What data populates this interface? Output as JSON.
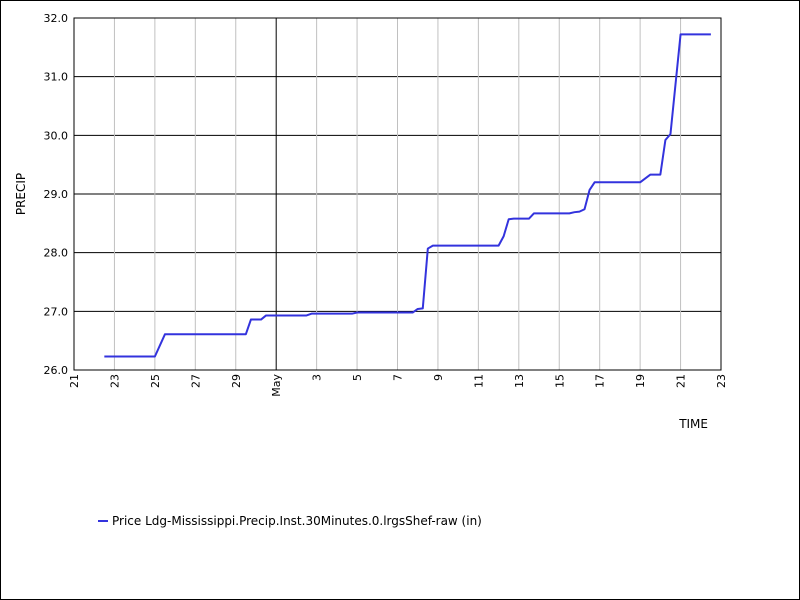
{
  "chart_data": {
    "type": "line",
    "title": "",
    "xlabel": "TIME",
    "ylabel": "PRECIP",
    "ylim": [
      26.0,
      32.0
    ],
    "y_ticks": [
      "26.0",
      "27.0",
      "28.0",
      "29.0",
      "30.0",
      "31.0",
      "32.0"
    ],
    "x_ticks": [
      {
        "date": "2024-04-21",
        "label": "21"
      },
      {
        "date": "2024-04-23",
        "label": "23"
      },
      {
        "date": "2024-04-25",
        "label": "25"
      },
      {
        "date": "2024-04-27",
        "label": "27"
      },
      {
        "date": "2024-04-29",
        "label": "29"
      },
      {
        "date": "2024-05-01",
        "label": "May"
      },
      {
        "date": "2024-05-03",
        "label": "3"
      },
      {
        "date": "2024-05-05",
        "label": "5"
      },
      {
        "date": "2024-05-07",
        "label": "7"
      },
      {
        "date": "2024-05-09",
        "label": "9"
      },
      {
        "date": "2024-05-11",
        "label": "11"
      },
      {
        "date": "2024-05-13",
        "label": "13"
      },
      {
        "date": "2024-05-15",
        "label": "15"
      },
      {
        "date": "2024-05-17",
        "label": "17"
      },
      {
        "date": "2024-05-19",
        "label": "19"
      },
      {
        "date": "2024-05-21",
        "label": "21"
      },
      {
        "date": "2024-05-23",
        "label": "23"
      }
    ],
    "xlim": [
      "2024-04-21",
      "2024-05-23"
    ],
    "grid": true,
    "legend_position": "bottom-left",
    "series": [
      {
        "name": "Price Ldg-Mississippi.Precip.Inst.30Minutes.0.lrgsShef-raw (in)",
        "color": "#3333dd",
        "points": [
          [
            "2024-04-22 12:00",
            26.23
          ],
          [
            "2024-04-25 00:00",
            26.23
          ],
          [
            "2024-04-25 12:00",
            26.61
          ],
          [
            "2024-04-26 00:00",
            26.61
          ],
          [
            "2024-04-29 12:00",
            26.61
          ],
          [
            "2024-04-29 18:00",
            26.86
          ],
          [
            "2024-04-30 06:00",
            26.86
          ],
          [
            "2024-04-30 12:00",
            26.93
          ],
          [
            "2024-05-02 12:00",
            26.93
          ],
          [
            "2024-05-02 18:00",
            26.96
          ],
          [
            "2024-05-04 18:00",
            26.96
          ],
          [
            "2024-05-05 00:00",
            26.98
          ],
          [
            "2024-05-07 18:00",
            26.98
          ],
          [
            "2024-05-08 00:00",
            27.04
          ],
          [
            "2024-05-08 06:00",
            27.05
          ],
          [
            "2024-05-08 12:00",
            28.07
          ],
          [
            "2024-05-08 18:00",
            28.12
          ],
          [
            "2024-05-12 00:00",
            28.12
          ],
          [
            "2024-05-12 06:00",
            28.28
          ],
          [
            "2024-05-12 12:00",
            28.57
          ],
          [
            "2024-05-12 18:00",
            28.58
          ],
          [
            "2024-05-13 12:00",
            28.58
          ],
          [
            "2024-05-13 18:00",
            28.67
          ],
          [
            "2024-05-15 12:00",
            28.67
          ],
          [
            "2024-05-15 18:00",
            28.69
          ],
          [
            "2024-05-16 00:00",
            28.7
          ],
          [
            "2024-05-16 06:00",
            28.74
          ],
          [
            "2024-05-16 12:00",
            29.07
          ],
          [
            "2024-05-16 18:00",
            29.2
          ],
          [
            "2024-05-19 00:00",
            29.2
          ],
          [
            "2024-05-19 12:00",
            29.33
          ],
          [
            "2024-05-20 00:00",
            29.33
          ],
          [
            "2024-05-20 06:00",
            29.92
          ],
          [
            "2024-05-20 12:00",
            30.02
          ],
          [
            "2024-05-21 00:00",
            31.72
          ],
          [
            "2024-05-22 12:00",
            31.72
          ]
        ]
      }
    ]
  }
}
